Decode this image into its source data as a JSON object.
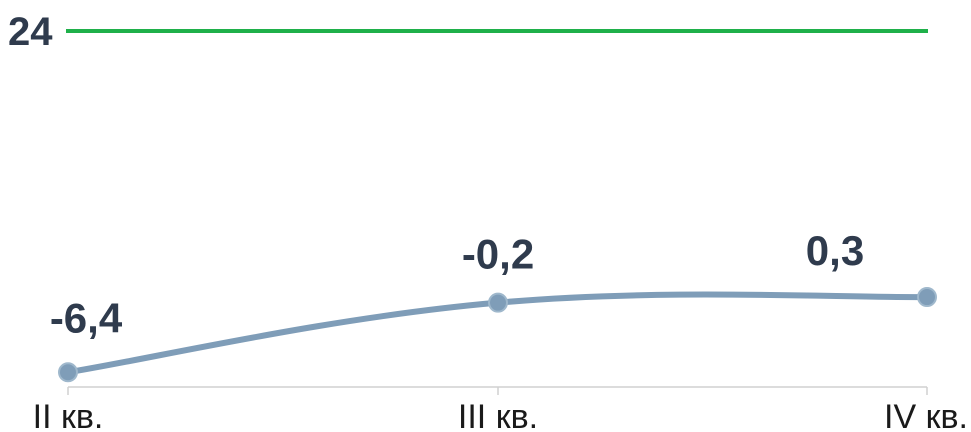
{
  "chart_data": {
    "type": "line",
    "categories": [
      "II кв.",
      "III кв.",
      "IV кв."
    ],
    "series": [
      {
        "values": [
          -6.4,
          -0.2,
          0.3
        ],
        "data_labels": [
          "-6,4",
          "-0,2",
          "0,3"
        ],
        "color": "#7f9db8"
      }
    ],
    "reference_line": {
      "value": 24,
      "label": "24",
      "color": "#1fb04a"
    },
    "ylim": [
      -7,
      24
    ],
    "smooth": true,
    "grid": false,
    "title": "",
    "xlabel": "",
    "ylabel": ""
  }
}
